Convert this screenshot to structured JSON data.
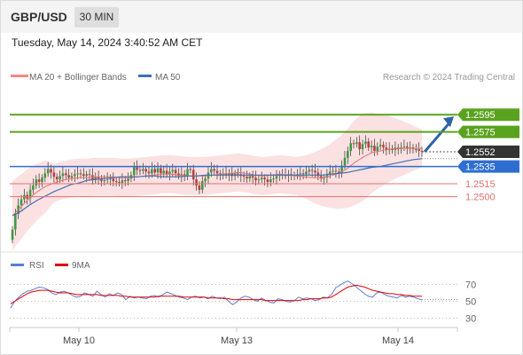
{
  "header": {
    "symbol": "GBP/USD",
    "timeframe": "30 MIN"
  },
  "datetime": "Tuesday, May 14, 2024 3:40:52 AM CET",
  "copyright": "Research © 2024 Trading Central",
  "colors": {
    "resistance": "#5aa31f",
    "support": "#e27070",
    "pivot": "#2f6ed1",
    "current": "#333333",
    "bull": "#3e9a46",
    "bear": "#bf3c3c",
    "bollinger": "#f7c8c8",
    "ma20": "#e57373",
    "ma50": "#3f6fb5",
    "arrow": "#2f63a8",
    "rsi": "#5b7fcf",
    "rsi_ma": "#e00000"
  },
  "chart_data": [
    {
      "type": "candlestick",
      "title": "GBP/USD",
      "legend": [
        {
          "name": "MA 20 + Bollinger Bands",
          "color": "#f28b82"
        },
        {
          "name": "MA 50",
          "color": "#3f6fb5"
        }
      ],
      "ylim": [
        1.244,
        1.2625
      ],
      "x_ticks": [
        "May 10",
        "May 13",
        "May 14"
      ],
      "levels": [
        {
          "value": 1.2595,
          "label": "1.2595",
          "kind": "resistance"
        },
        {
          "value": 1.2575,
          "label": "1.2575",
          "kind": "resistance"
        },
        {
          "value": 1.2552,
          "label": "1.2552",
          "kind": "current"
        },
        {
          "value": 1.2535,
          "label": "1.2535",
          "kind": "pivot"
        },
        {
          "value": 1.2515,
          "label": "1.2515",
          "kind": "support"
        },
        {
          "value": 1.25,
          "label": "1.2500",
          "kind": "support"
        }
      ],
      "closes": [
        1.2462,
        1.248,
        1.249,
        1.2497,
        1.2502,
        1.2498,
        1.2508,
        1.2513,
        1.252,
        1.2517,
        1.2522,
        1.2527,
        1.2532,
        1.2528,
        1.2523,
        1.252,
        1.2524,
        1.2527,
        1.2525,
        1.2522,
        1.2524,
        1.2526,
        1.2527,
        1.2526,
        1.2524,
        1.2526,
        1.2525,
        1.2519,
        1.2523,
        1.2521,
        1.2518,
        1.2519,
        1.252,
        1.2521,
        1.2518,
        1.2517,
        1.2516,
        1.2519,
        1.2518,
        1.2521,
        1.2525,
        1.2534,
        1.2531,
        1.253,
        1.2532,
        1.2529,
        1.2527,
        1.2532,
        1.2528,
        1.2533,
        1.2527,
        1.253,
        1.2526,
        1.2529,
        1.2531,
        1.2527,
        1.2524,
        1.2526,
        1.2524,
        1.2532,
        1.2531,
        1.252,
        1.2513,
        1.2508,
        1.2518,
        1.2521,
        1.2528,
        1.2532,
        1.253,
        1.2527,
        1.2525,
        1.2527,
        1.2525,
        1.2527,
        1.2524,
        1.2527,
        1.2526,
        1.2524,
        1.2523,
        1.2521,
        1.2524,
        1.2522,
        1.2519,
        1.252,
        1.2522,
        1.252,
        1.2517,
        1.252,
        1.2521,
        1.2524,
        1.2526,
        1.2525,
        1.2524,
        1.2526,
        1.2525,
        1.2524,
        1.2526,
        1.2527,
        1.2526,
        1.2529,
        1.2531,
        1.253,
        1.2528,
        1.2524,
        1.2521,
        1.2522,
        1.2526,
        1.2529,
        1.253,
        1.2529,
        1.2527,
        1.2536,
        1.2545,
        1.2553,
        1.2562,
        1.2561,
        1.2563,
        1.2555,
        1.2561,
        1.2564,
        1.2557,
        1.2559,
        1.2553,
        1.2558,
        1.256,
        1.2557,
        1.2554,
        1.2555,
        1.2554,
        1.2557,
        1.2555,
        1.2557,
        1.2558,
        1.2556,
        1.2557,
        1.2555,
        1.2555,
        1.2553,
        1.2552
      ],
      "ma20": [
        1.2478,
        1.2488,
        1.2498,
        1.2506,
        1.2512,
        1.2516,
        1.2519,
        1.2521,
        1.2522,
        1.2522,
        1.2523,
        1.2523,
        1.2523,
        1.2522,
        1.2522,
        1.2523,
        1.2524,
        1.2525,
        1.2526,
        1.2526,
        1.2525,
        1.2524,
        1.2524,
        1.2524,
        1.2525,
        1.2526,
        1.2527,
        1.2528,
        1.2527,
        1.2525,
        1.2524,
        1.2525,
        1.2526,
        1.2525,
        1.2524,
        1.2523,
        1.2522,
        1.2522,
        1.2524,
        1.2527,
        1.2532,
        1.254,
        1.2546,
        1.2551,
        1.2553,
        1.2555,
        1.2556,
        1.2556,
        1.2556,
        1.2556
      ],
      "ma50": [
        1.2478,
        1.2483,
        1.249,
        1.2496,
        1.2501,
        1.2506,
        1.251,
        1.2514,
        1.2516,
        1.2519,
        1.252,
        1.2521,
        1.2522,
        1.2523,
        1.2523,
        1.2523,
        1.2524,
        1.2524,
        1.2523,
        1.2523,
        1.2523,
        1.2524,
        1.2524,
        1.2525,
        1.2525,
        1.2525,
        1.2525,
        1.2525,
        1.2525,
        1.2525,
        1.2525,
        1.2525,
        1.2525,
        1.2525,
        1.2525,
        1.2525,
        1.2525,
        1.2525,
        1.2526,
        1.2527,
        1.2528,
        1.253,
        1.2532,
        1.2534,
        1.2535,
        1.2537,
        1.2539,
        1.2541,
        1.2543,
        1.2544
      ],
      "projection": {
        "from": 1.2552,
        "to": 1.2595
      }
    },
    {
      "type": "line",
      "legend": [
        {
          "name": "RSI",
          "color": "#5b7fcf"
        },
        {
          "name": "9MA",
          "color": "#e00000"
        }
      ],
      "ylim": [
        20,
        80
      ],
      "y_ticks": [
        70,
        50,
        30
      ],
      "rsi": [
        42,
        50,
        55,
        59,
        62,
        63,
        65,
        67,
        66,
        64,
        60,
        58,
        61,
        62,
        60,
        57,
        55,
        56,
        60,
        58,
        56,
        62,
        58,
        55,
        59,
        57,
        60,
        58,
        52,
        56,
        54,
        55,
        54,
        53,
        56,
        57,
        55,
        58,
        61,
        59,
        57,
        55,
        54,
        52,
        55,
        56,
        54,
        55,
        53,
        56,
        54,
        53,
        55,
        50,
        46,
        49,
        54,
        56,
        55,
        52,
        50,
        54,
        51,
        49,
        48,
        53,
        52,
        50,
        49,
        51,
        55,
        53,
        54,
        53,
        51,
        52,
        55,
        54,
        58,
        66,
        69,
        72,
        74,
        71,
        67,
        63,
        59,
        56,
        55,
        60,
        61,
        58,
        56,
        55,
        54,
        57,
        55,
        56,
        55,
        53,
        52
      ],
      "ma9": [
        47,
        50,
        53,
        56,
        59,
        61,
        62,
        63,
        63,
        63,
        62,
        61,
        60,
        60,
        60,
        59,
        58,
        58,
        58,
        58,
        58,
        58,
        57,
        57,
        57,
        57,
        57,
        56,
        56,
        55,
        55,
        55,
        55,
        55,
        55,
        55,
        56,
        56,
        56,
        56,
        56,
        56,
        55,
        55,
        55,
        55,
        55,
        55,
        54,
        54,
        54,
        54,
        53,
        53,
        52,
        52,
        52,
        52,
        52,
        52,
        52,
        52,
        51,
        51,
        51,
        51,
        51,
        51,
        51,
        51,
        51,
        52,
        52,
        53,
        53,
        53,
        54,
        54,
        55,
        58,
        61,
        64,
        67,
        68,
        69,
        68,
        67,
        65,
        63,
        62,
        61,
        60,
        59,
        59,
        58,
        58,
        57,
        57,
        56,
        56,
        56
      ]
    }
  ]
}
